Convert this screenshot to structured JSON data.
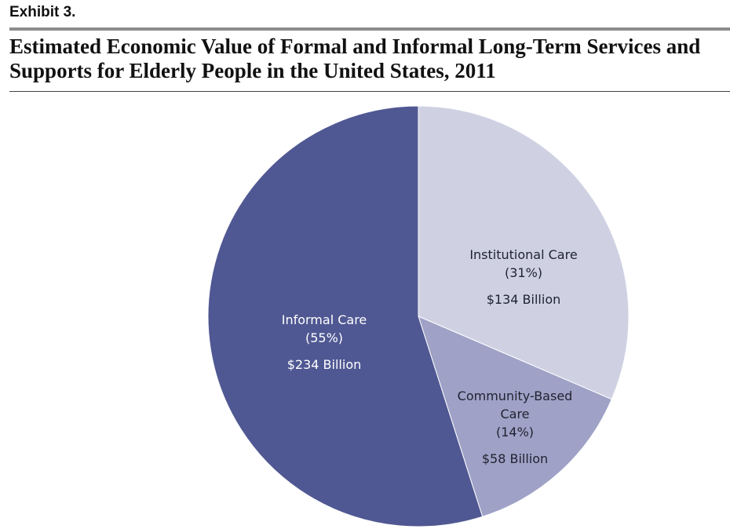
{
  "exhibit_label": "Exhibit 3.",
  "title_line1": "Estimated Economic Value of Formal and Informal Long-Term Services and",
  "title_line2": "Supports for Elderly People in the United States, 2011",
  "chart_data": {
    "type": "pie",
    "title": "Estimated Economic Value of Formal and Informal Long-Term Services and Supports for Elderly People in the United States, 2011",
    "unit": "Billion",
    "slices": [
      {
        "label_lines": [
          "Institutional Care"
        ],
        "percent_text": "(31%)",
        "value_text": "$134 Billion",
        "value": 134,
        "percent": 31,
        "color": "#cfd1e3",
        "text_color": "#1f2230"
      },
      {
        "label_lines": [
          "Community-Based",
          "Care"
        ],
        "percent_text": "(14%)",
        "value_text": "$58 Billion",
        "value": 58,
        "percent": 14,
        "color": "#9fa2c6",
        "text_color": "#1f2230"
      },
      {
        "label_lines": [
          "Informal Care"
        ],
        "percent_text": "(55%)",
        "value_text": "$234 Billion",
        "value": 234,
        "percent": 55,
        "color": "#505893",
        "text_color": "#ffffff"
      }
    ],
    "start_angle": "12 o'clock",
    "direction": "clockwise",
    "legend": "none"
  }
}
